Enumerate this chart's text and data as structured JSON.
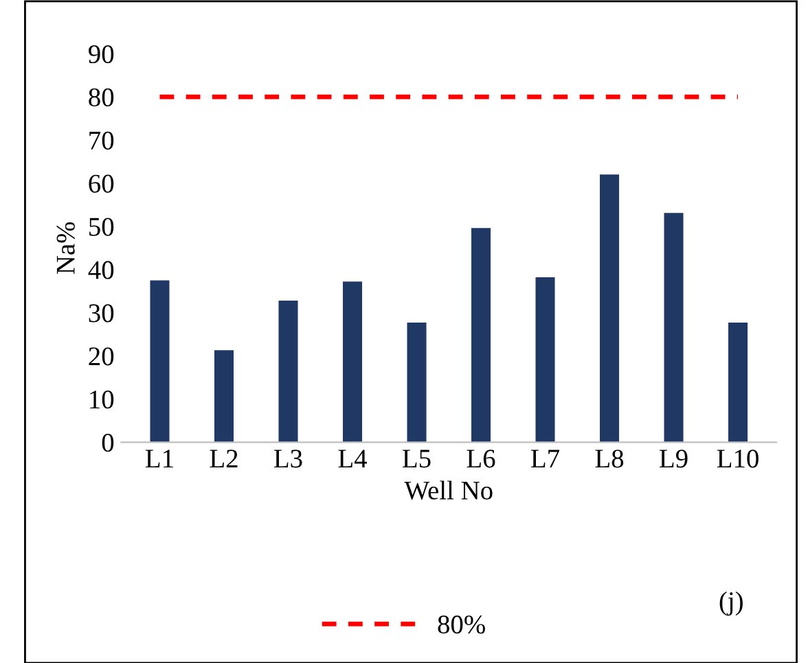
{
  "chart_data": {
    "type": "bar",
    "categories": [
      "L1",
      "L2",
      "L3",
      "L4",
      "L5",
      "L6",
      "L7",
      "L8",
      "L9",
      "L10"
    ],
    "values": [
      37.5,
      21.3,
      32.8,
      37.2,
      27.7,
      49.6,
      38.2,
      62,
      53.1,
      27.7
    ],
    "color": "#203864",
    "xlabel": "Well No",
    "ylabel": "Na%",
    "ylim": [
      0,
      90
    ],
    "yticks": [
      0,
      10,
      20,
      30,
      40,
      50,
      60,
      70,
      80,
      90
    ],
    "grid": false,
    "ref_lines": [
      {
        "axis": "y",
        "value": 80,
        "label": "80%",
        "color": "#ff0000",
        "line_style": "dashed"
      }
    ],
    "legend": "bottom",
    "annotations": [
      "(j)"
    ]
  }
}
